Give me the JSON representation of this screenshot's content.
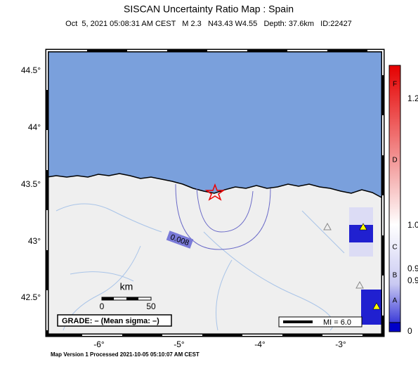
{
  "header": {
    "title": "SISCAN Uncertainty Ratio Map : Spain",
    "subtitle": "Oct  5, 2021 05:08:31 AM CEST   M 2.3   N43.43 W4.55   Depth: 37.6km   ID:22427"
  },
  "map": {
    "lat_labels": [
      "44.5°",
      "44°",
      "43.5°",
      "43°",
      "42.5°"
    ],
    "lon_labels": [
      "-6°",
      "-5°",
      "-4°",
      "-3°"
    ],
    "contour_label": "0.008"
  },
  "scale": {
    "unit": "km",
    "labels": [
      "0",
      "50"
    ]
  },
  "grade": "GRADE: – (Mean sigma: –)",
  "legend": "MI = 6.0",
  "colorbar": {
    "letters": [
      "F",
      "D",
      "C",
      "B",
      "A"
    ],
    "values": [
      "1.2",
      "1.0",
      "0.9",
      "0.9",
      "0"
    ]
  },
  "footer": "Map Version 1 Processed 2021-10-05 05:10:07 AM CEST"
}
